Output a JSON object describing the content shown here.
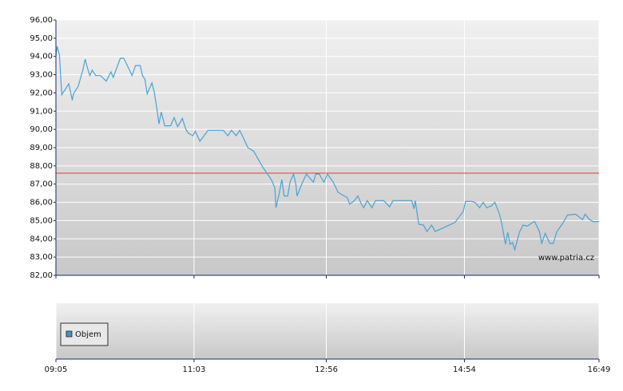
{
  "chart_data": [
    {
      "type": "line",
      "color": "#4aa3d4",
      "x": [
        "09:05",
        "09:06",
        "09:08",
        "09:10",
        "09:16",
        "09:19",
        "09:20",
        "09:24",
        "09:28",
        "09:30",
        "09:32",
        "09:34",
        "09:36",
        "09:39",
        "09:43",
        "09:48",
        "09:52",
        "09:54",
        "10:00",
        "10:03",
        "10:06",
        "10:10",
        "10:13",
        "10:17",
        "10:19",
        "10:21",
        "10:23",
        "10:27",
        "10:29",
        "10:31",
        "10:33",
        "10:35",
        "10:38",
        "10:43",
        "10:46",
        "10:49",
        "10:53",
        "10:56",
        "10:58",
        "11:02",
        "11:04",
        "11:08",
        "11:15",
        "11:28",
        "11:32",
        "11:35",
        "11:39",
        "11:42",
        "11:45",
        "11:49",
        "11:54",
        "11:58",
        "12:02",
        "12:09",
        "12:12",
        "12:13",
        "12:16",
        "12:18",
        "12:20",
        "12:23",
        "12:25",
        "12:28",
        "12:30",
        "12:31",
        "12:35",
        "12:39",
        "12:45",
        "12:47",
        "12:50",
        "12:54",
        "12:57",
        "13:02",
        "13:06",
        "13:14",
        "13:16",
        "13:20",
        "13:23",
        "13:26",
        "13:28",
        "13:31",
        "13:35",
        "13:38",
        "13:45",
        "13:50",
        "13:53",
        "14:09",
        "14:11",
        "14:12",
        "14:15",
        "14:19",
        "14:22",
        "14:26",
        "14:29",
        "14:36",
        "14:46",
        "14:50",
        "14:53",
        "14:55",
        "15:00",
        "15:03",
        "15:07",
        "15:10",
        "15:13",
        "15:17",
        "15:20",
        "15:24",
        "15:26",
        "15:29",
        "15:31",
        "15:33",
        "15:35",
        "15:37",
        "15:41",
        "15:44",
        "15:48",
        "15:51",
        "15:54",
        "15:58",
        "16:00",
        "16:03",
        "16:07",
        "16:10",
        "16:13",
        "16:18",
        "16:22",
        "16:29",
        "16:35",
        "16:37",
        "16:41",
        "16:44",
        "16:49"
      ],
      "values": [
        94.0,
        94.55,
        94.1,
        91.9,
        92.5,
        91.6,
        91.95,
        92.35,
        93.25,
        93.85,
        93.35,
        92.95,
        93.25,
        92.95,
        92.95,
        92.65,
        93.15,
        92.85,
        93.9,
        93.9,
        93.5,
        92.95,
        93.5,
        93.5,
        92.95,
        92.75,
        91.95,
        92.55,
        92.05,
        91.25,
        90.3,
        90.95,
        90.2,
        90.2,
        90.65,
        90.15,
        90.6,
        90.0,
        89.8,
        89.65,
        89.9,
        89.35,
        89.95,
        89.95,
        89.65,
        89.95,
        89.65,
        89.95,
        89.55,
        89.0,
        88.8,
        88.35,
        87.9,
        87.25,
        86.8,
        85.7,
        86.55,
        87.25,
        86.35,
        86.35,
        87.1,
        87.55,
        87.0,
        86.35,
        87.0,
        87.55,
        87.1,
        87.55,
        87.55,
        87.1,
        87.55,
        87.1,
        86.55,
        86.25,
        85.9,
        86.1,
        86.35,
        85.9,
        85.7,
        86.1,
        85.7,
        86.1,
        86.1,
        85.75,
        86.1,
        86.1,
        85.65,
        86.1,
        84.8,
        84.75,
        84.4,
        84.75,
        84.4,
        84.6,
        84.9,
        85.25,
        85.5,
        86.05,
        86.05,
        86.0,
        85.7,
        86.0,
        85.7,
        85.8,
        86.0,
        85.35,
        84.8,
        83.7,
        84.35,
        83.7,
        83.8,
        83.4,
        84.35,
        84.75,
        84.7,
        84.85,
        84.95,
        84.4,
        83.75,
        84.3,
        83.75,
        83.75,
        84.4,
        84.85,
        85.3,
        85.35,
        85.05,
        85.35,
        85.05,
        84.95,
        84.95
      ],
      "xlim": [
        "09:05",
        "16:49"
      ],
      "xticks": [
        "09:05",
        "11:03",
        "12:56",
        "14:54",
        "16:49"
      ],
      "ylim": [
        82,
        96
      ],
      "yticks": [
        {
          "value": 82,
          "label": "82,00"
        },
        {
          "value": 83,
          "label": "83,00"
        },
        {
          "value": 84,
          "label": "84,00"
        },
        {
          "value": 85,
          "label": "85,00"
        },
        {
          "value": 86,
          "label": "86,00"
        },
        {
          "value": 87,
          "label": "87,00"
        },
        {
          "value": 88,
          "label": "88,00"
        },
        {
          "value": 89,
          "label": "89,00"
        },
        {
          "value": 90,
          "label": "90,00"
        },
        {
          "value": 91,
          "label": "91,00"
        },
        {
          "value": 92,
          "label": "92,00"
        },
        {
          "value": 93,
          "label": "93,00"
        },
        {
          "value": 94,
          "label": "94,00"
        },
        {
          "value": 95,
          "label": "95,00"
        },
        {
          "value": 96,
          "label": "96,00"
        }
      ],
      "reference_line": {
        "value": 87.6,
        "color": "#e03c3c"
      },
      "annotation": "www.patria.cz",
      "grid": true
    },
    {
      "type": "bar",
      "series": [
        {
          "name": "Objem",
          "color": "#4a90c0",
          "values": []
        }
      ],
      "grid": true
    }
  ]
}
